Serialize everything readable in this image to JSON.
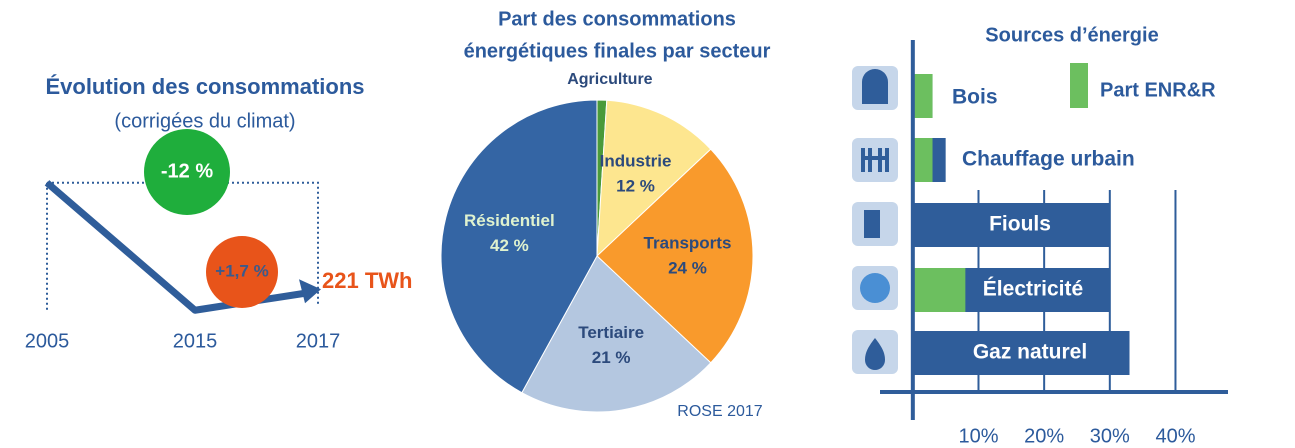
{
  "chart_data": [
    {
      "type": "line",
      "title": "Évolution des consommations",
      "subtitle": "(corrigées du climat)",
      "categories": [
        "2005",
        "2015",
        "2017"
      ],
      "values": [
        247,
        217,
        221
      ],
      "color": "#2f5d9a",
      "ylim": [
        210,
        250
      ],
      "annotations": [
        {
          "text": "-12 %",
          "color": "#1fae3c"
        },
        {
          "text": "+1,7 %",
          "color": "#e8541a"
        },
        {
          "text": "221 TWh",
          "color": "#e8541a"
        }
      ]
    },
    {
      "type": "pie",
      "title": [
        "Part des consommations",
        "énergétiques finales par secteur"
      ],
      "categories": [
        "Agriculture",
        "Industrie",
        "Transports",
        "Tertiaire",
        "Résidentiel"
      ],
      "values": [
        1,
        12,
        24,
        21,
        42
      ],
      "value_labels": [
        null,
        "12 %",
        "24 %",
        "21 %",
        "42 %"
      ],
      "colors": [
        "#4a9a3a",
        "#fde68f",
        "#f99a2c",
        "#b4c7e0",
        "#3465a4"
      ],
      "source": "ROSE 2017"
    },
    {
      "type": "barh",
      "title": "Sources d’énergie",
      "categories": [
        "Bois",
        "Chauffage urbain",
        "Fiouls",
        "Électricité",
        "Gaz naturel"
      ],
      "series": [
        {
          "color": "#2f5d9a",
          "values": [
            3,
            5,
            30,
            30,
            33
          ]
        },
        {
          "name": "Part ENR&R",
          "color": "#6cbf5f",
          "values": [
            3,
            3,
            0,
            8,
            0
          ]
        }
      ],
      "xlim": [
        -5,
        48
      ],
      "xticks": [
        {
          "value": 10,
          "label": "10%"
        },
        {
          "value": 20,
          "label": "20%"
        },
        {
          "value": 30,
          "label": "30%"
        },
        {
          "value": 40,
          "label": "40%"
        }
      ],
      "grid": true
    }
  ]
}
